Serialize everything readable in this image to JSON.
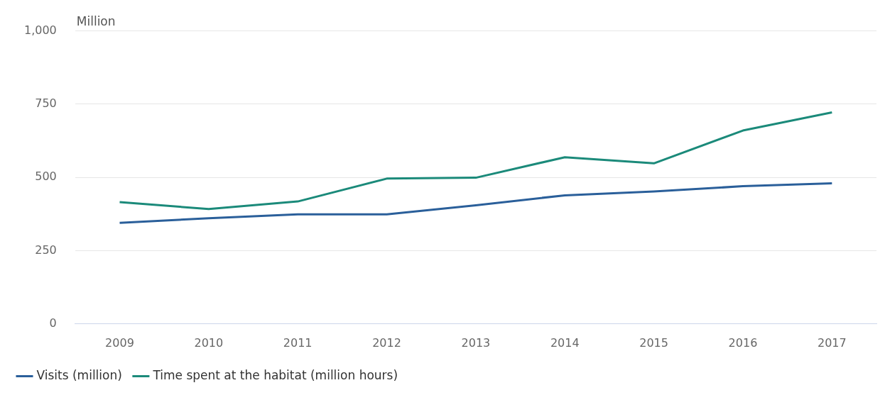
{
  "chart_data": {
    "type": "line",
    "ylabel": "Million",
    "categories": [
      "2009",
      "2010",
      "2011",
      "2012",
      "2013",
      "2014",
      "2015",
      "2016",
      "2017"
    ],
    "series": [
      {
        "name": "Visits (million)",
        "color": "#2a5f9a",
        "values": [
          345,
          361,
          374,
          374,
          405,
          439,
          452,
          470,
          480
        ]
      },
      {
        "name": "Time spent at the habitat (million hours)",
        "color": "#1b8a7a",
        "values": [
          416,
          392,
          418,
          496,
          499,
          569,
          548,
          660,
          722
        ]
      }
    ],
    "ylim": [
      0,
      1000
    ],
    "yticks": [
      0,
      250,
      500,
      750,
      {
        "value": 1000,
        "label": "1,000"
      }
    ],
    "grid": "y",
    "legend": "bottom left",
    "marker": "none",
    "line_style": "solid"
  }
}
